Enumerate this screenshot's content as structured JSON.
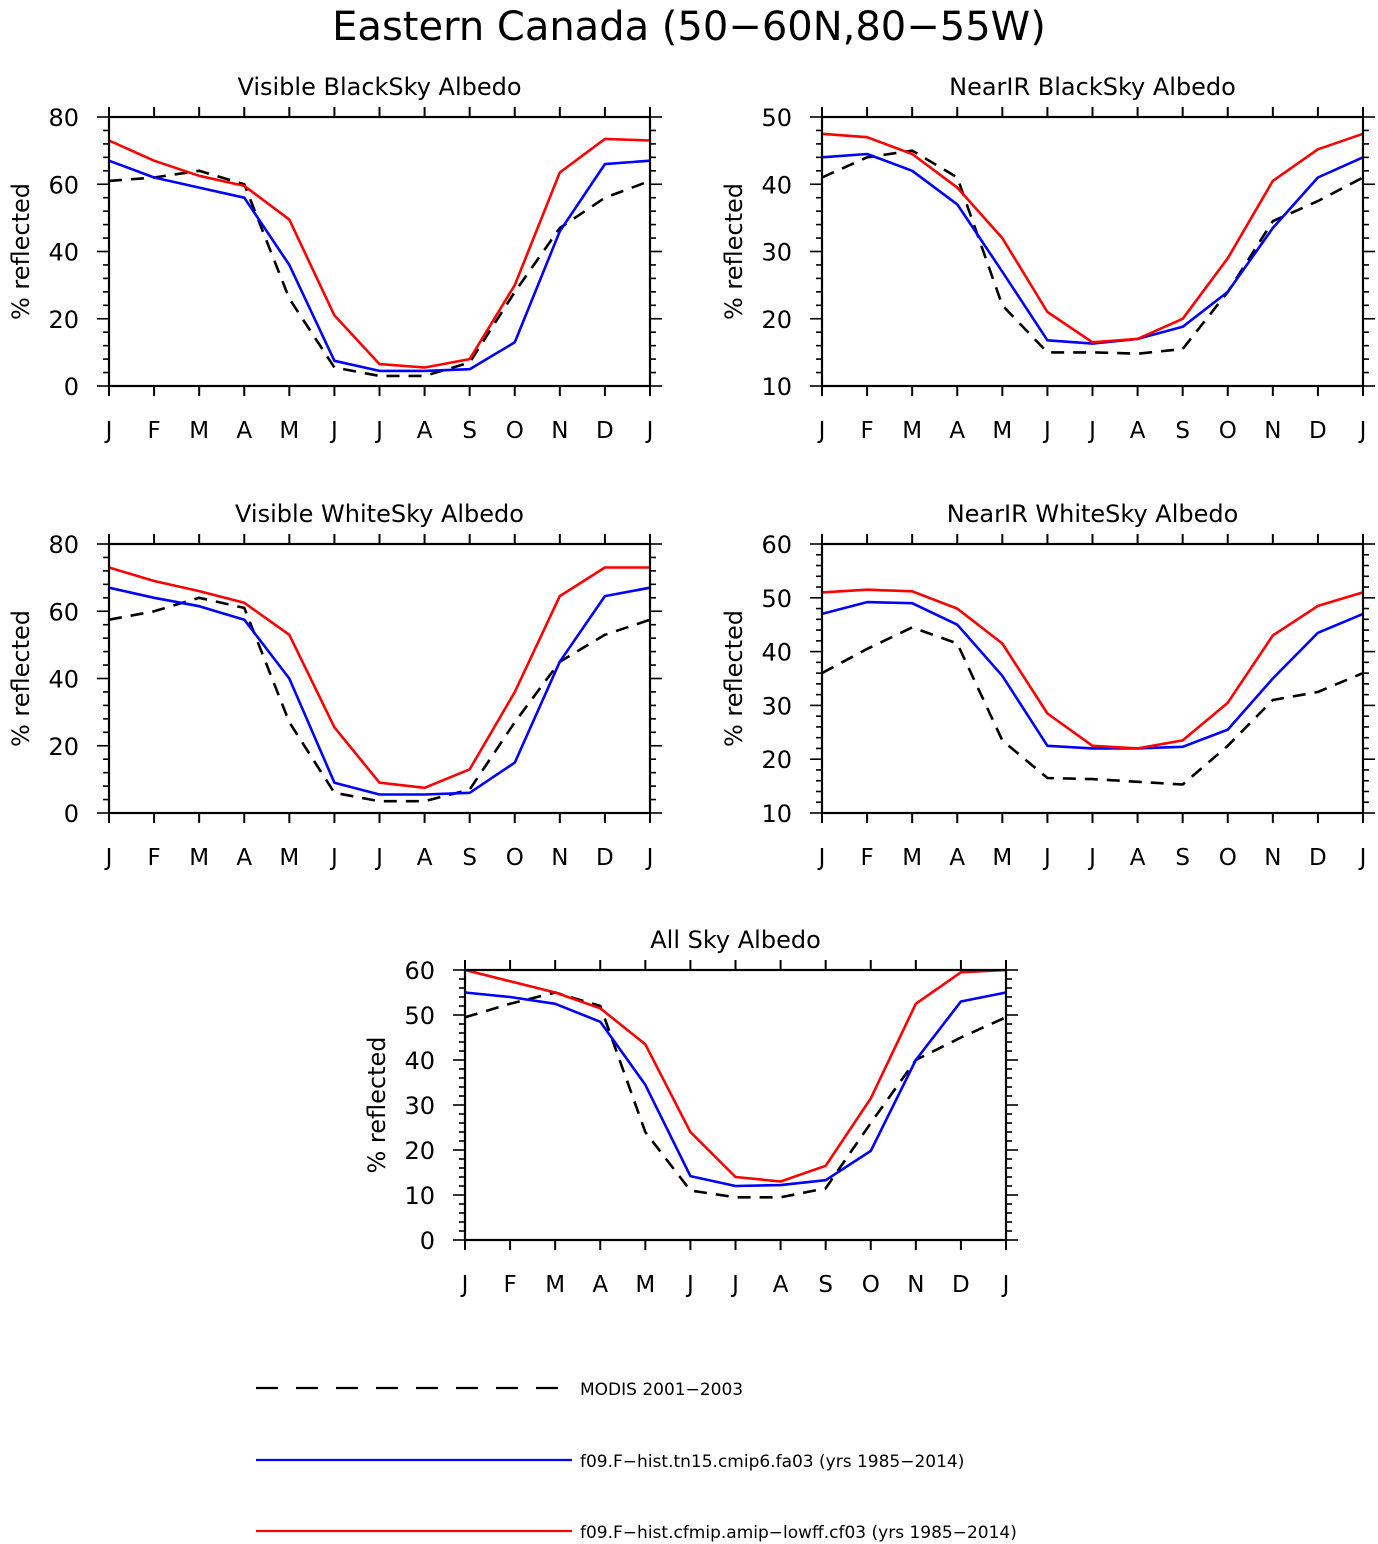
{
  "figure_title": "Eastern Canada (50−60N,80−55W)",
  "colors": {
    "modis": "#000000",
    "model_a": "#0000ff",
    "model_b": "#ff0000"
  },
  "legend": {
    "entries": [
      {
        "label": "MODIS 2001−2003",
        "series": "modis",
        "style": "dashed"
      },
      {
        "label": "f09.F−hist.tn15.cmip6.fa03 (yrs 1985−2014)",
        "series": "model_a",
        "style": "solid"
      },
      {
        "label": "f09.F−hist.cfmip.amip−lowff.cf03 (yrs 1985−2014)",
        "series": "model_b",
        "style": "solid"
      }
    ]
  },
  "chart_data": [
    {
      "type": "line",
      "title": "Visible BlackSky Albedo",
      "xlabel": "",
      "ylabel": "% reflected",
      "categories": [
        "J",
        "F",
        "M",
        "A",
        "M",
        "J",
        "J",
        "A",
        "S",
        "O",
        "N",
        "D",
        "J"
      ],
      "ylim": [
        0,
        80
      ],
      "yticks": [
        0,
        20,
        40,
        60,
        80
      ],
      "series": [
        {
          "key": "modis",
          "name": "MODIS 2001−2003",
          "values": [
            61,
            62,
            64,
            60,
            26,
            5.5,
            3,
            3,
            7,
            28,
            47,
            56,
            61
          ]
        },
        {
          "key": "model_a",
          "name": "f09.F−hist.tn15.cmip6.fa03 (yrs 1985−2014)",
          "values": [
            67,
            62,
            59,
            56,
            36,
            7.5,
            4.5,
            4.5,
            5,
            13,
            46,
            66,
            67
          ]
        },
        {
          "key": "model_b",
          "name": "f09.F−hist.cfmip.amip−lowff.cf03 (yrs 1985−2014)",
          "values": [
            73,
            67,
            62.5,
            59.5,
            49.5,
            21,
            6.5,
            5.5,
            8,
            30,
            63.5,
            73.5,
            73
          ]
        }
      ]
    },
    {
      "type": "line",
      "title": "NearIR BlackSky Albedo",
      "xlabel": "",
      "ylabel": "% reflected",
      "categories": [
        "J",
        "F",
        "M",
        "A",
        "M",
        "J",
        "J",
        "A",
        "S",
        "O",
        "N",
        "D",
        "J"
      ],
      "ylim": [
        10,
        50
      ],
      "yticks": [
        10,
        20,
        30,
        40,
        50
      ],
      "series": [
        {
          "key": "modis",
          "name": "MODIS 2001−2003",
          "values": [
            41,
            44,
            45,
            41,
            22,
            15,
            15,
            14.8,
            15.5,
            24,
            34.5,
            37.5,
            41
          ]
        },
        {
          "key": "model_a",
          "name": "f09.F−hist.tn15.cmip6.fa03 (yrs 1985−2014)",
          "values": [
            44,
            44.5,
            42,
            37,
            27,
            16.8,
            16.3,
            17,
            18.8,
            24,
            33.5,
            41,
            44
          ]
        },
        {
          "key": "model_b",
          "name": "f09.F−hist.cfmip.amip−lowff.cf03 (yrs 1985−2014)",
          "values": [
            47.5,
            47,
            44.5,
            39.5,
            32,
            21,
            16.5,
            17,
            20,
            29,
            40.5,
            45.2,
            47.5
          ]
        }
      ]
    },
    {
      "type": "line",
      "title": "Visible WhiteSky Albedo",
      "xlabel": "",
      "ylabel": "% reflected",
      "categories": [
        "J",
        "F",
        "M",
        "A",
        "M",
        "J",
        "J",
        "A",
        "S",
        "O",
        "N",
        "D",
        "J"
      ],
      "ylim": [
        0,
        80
      ],
      "yticks": [
        0,
        20,
        40,
        60,
        80
      ],
      "series": [
        {
          "key": "modis",
          "name": "MODIS 2001−2003",
          "values": [
            57.5,
            60,
            64,
            61,
            27,
            6,
            3.5,
            3.5,
            7,
            27,
            45,
            53,
            57.5
          ]
        },
        {
          "key": "model_a",
          "name": "f09.F−hist.tn15.cmip6.fa03 (yrs 1985−2014)",
          "values": [
            67,
            64,
            61.5,
            57.5,
            40,
            9,
            5.5,
            5.5,
            6,
            15,
            45,
            64.5,
            67
          ]
        },
        {
          "key": "model_b",
          "name": "f09.F−hist.cfmip.amip−lowff.cf03 (yrs 1985−2014)",
          "values": [
            73,
            69,
            66,
            62.5,
            53,
            25.5,
            9,
            7.5,
            13,
            36,
            64.5,
            73,
            73
          ]
        }
      ]
    },
    {
      "type": "line",
      "title": "NearIR WhiteSky Albedo",
      "xlabel": "",
      "ylabel": "% reflected",
      "categories": [
        "J",
        "F",
        "M",
        "A",
        "M",
        "J",
        "J",
        "A",
        "S",
        "O",
        "N",
        "D",
        "J"
      ],
      "ylim": [
        10,
        60
      ],
      "yticks": [
        10,
        20,
        30,
        40,
        50,
        60
      ],
      "series": [
        {
          "key": "modis",
          "name": "MODIS 2001−2003",
          "values": [
            36,
            40.5,
            44.5,
            41.5,
            23.5,
            16.5,
            16.3,
            15.8,
            15.3,
            22.5,
            31,
            32.5,
            36
          ]
        },
        {
          "key": "model_a",
          "name": "f09.F−hist.tn15.cmip6.fa03 (yrs 1985−2014)",
          "values": [
            47,
            49.2,
            49,
            45,
            35.5,
            22.5,
            22,
            22,
            22.3,
            25.5,
            35,
            43.5,
            47
          ]
        },
        {
          "key": "model_b",
          "name": "f09.F−hist.cfmip.amip−lowff.cf03 (yrs 1985−2014)",
          "values": [
            51,
            51.5,
            51.2,
            48,
            41.5,
            28.5,
            22.5,
            22,
            23.5,
            30.5,
            43,
            48.5,
            51
          ]
        }
      ]
    },
    {
      "type": "line",
      "title": "All Sky Albedo",
      "xlabel": "",
      "ylabel": "% reflected",
      "categories": [
        "J",
        "F",
        "M",
        "A",
        "M",
        "J",
        "J",
        "A",
        "S",
        "O",
        "N",
        "D",
        "J"
      ],
      "ylim": [
        0,
        60
      ],
      "yticks": [
        0,
        10,
        20,
        30,
        40,
        50,
        60
      ],
      "series": [
        {
          "key": "modis",
          "name": "MODIS 2001−2003",
          "values": [
            49.5,
            52.5,
            55,
            52,
            24,
            11,
            9.5,
            9.5,
            11.5,
            26,
            40,
            45,
            49.5
          ]
        },
        {
          "key": "model_a",
          "name": "f09.F−hist.tn15.cmip6.fa03 (yrs 1985−2014)",
          "values": [
            55,
            54,
            52.5,
            48.5,
            34.5,
            14.2,
            12,
            12.2,
            13.3,
            19.8,
            40,
            53,
            55
          ]
        },
        {
          "key": "model_b",
          "name": "f09.F−hist.cfmip.amip−lowff.cf03 (yrs 1985−2014)",
          "values": [
            60,
            57.5,
            55,
            51.5,
            43.5,
            24,
            14,
            13,
            16.5,
            31.5,
            52.5,
            59.5,
            60
          ]
        }
      ]
    }
  ]
}
